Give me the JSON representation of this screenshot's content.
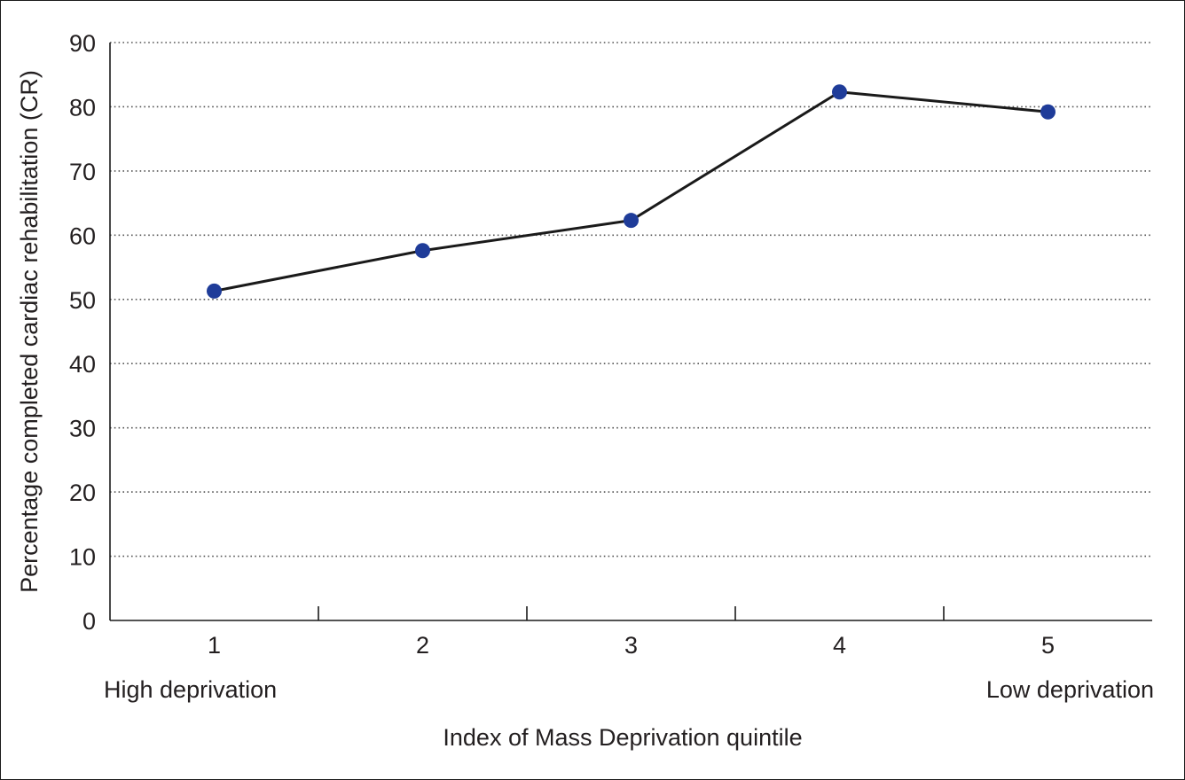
{
  "chart_data": {
    "type": "line",
    "title": "",
    "xlabel": "Index of Mass Deprivation quintile",
    "ylabel": "Percentage completed cardiac rehabilitation (CR)",
    "categories": [
      "1",
      "2",
      "3",
      "4",
      "5"
    ],
    "series": [
      {
        "values": [
          51.3,
          57.6,
          62.3,
          82.3,
          79.2
        ]
      }
    ],
    "ylim": [
      0,
      90
    ],
    "yticks": [
      "0",
      "10",
      "20",
      "30",
      "40",
      "50",
      "60",
      "70",
      "80",
      "90"
    ],
    "grid": "horizontal dotted",
    "legend": "none",
    "annotations": {
      "low_end": "High deprivation",
      "high_end": "Low deprivation"
    },
    "colors": {
      "marker": "#1f3c99",
      "line": "#1a1a1a",
      "grid": "#555555"
    }
  }
}
